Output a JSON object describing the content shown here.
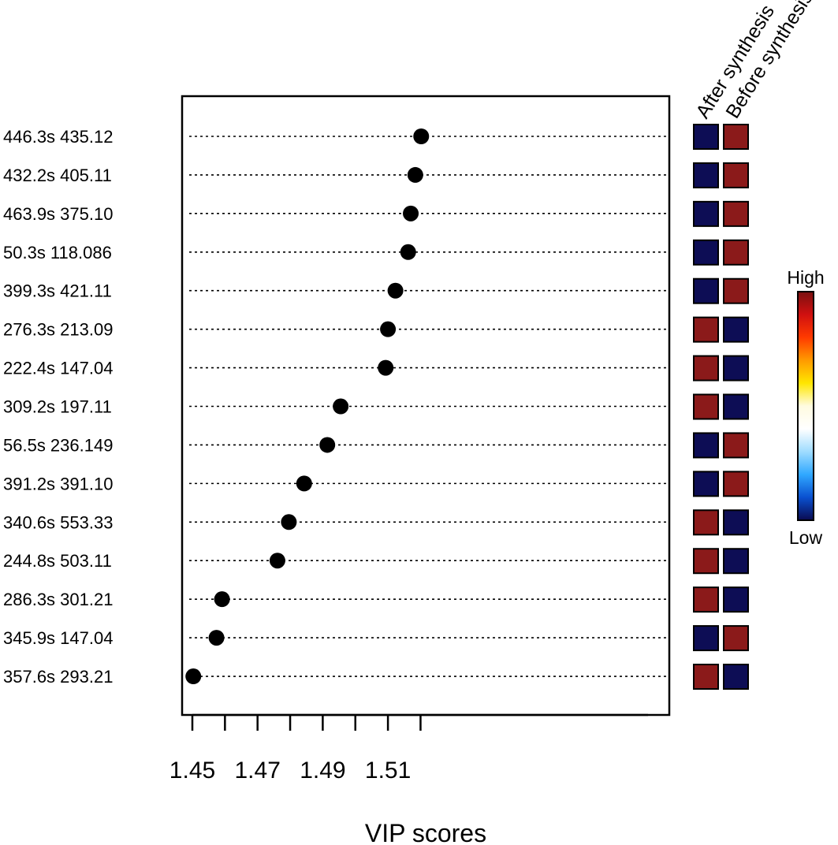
{
  "chart_data": {
    "type": "scatter",
    "title": "",
    "xlabel": "VIP scores",
    "ylabel": "",
    "xlim": [
      1.448,
      1.526
    ],
    "x_ticks": [
      1.45,
      1.46,
      1.47,
      1.48,
      1.49,
      1.5,
      1.51,
      1.52
    ],
    "x_tick_labels": [
      "1.45",
      "1.47",
      "1.49",
      "1.51"
    ],
    "features": [
      {
        "label": "446.3s  435.12",
        "vip": 1.5202
      },
      {
        "label": "432.2s  405.11",
        "vip": 1.5184
      },
      {
        "label": "463.9s  375.10",
        "vip": 1.517
      },
      {
        "label": "50.3s  118.086",
        "vip": 1.5162
      },
      {
        "label": "399.3s  421.11",
        "vip": 1.5123
      },
      {
        "label": "276.3s  213.09",
        "vip": 1.51
      },
      {
        "label": "222.4s  147.04",
        "vip": 1.5093
      },
      {
        "label": "309.2s  197.11",
        "vip": 1.4955
      },
      {
        "label": "56.5s  236.149",
        "vip": 1.4914
      },
      {
        "label": "391.2s  391.10",
        "vip": 1.4843
      },
      {
        "label": "340.6s  553.33",
        "vip": 1.4796
      },
      {
        "label": "244.8s  503.11",
        "vip": 1.4761
      },
      {
        "label": "286.3s  301.21",
        "vip": 1.4591
      },
      {
        "label": "345.9s  147.04",
        "vip": 1.4574
      },
      {
        "label": "357.6s  293.21",
        "vip": 1.4503
      }
    ],
    "groups": [
      "After synthesis",
      "Before synthesis"
    ],
    "heatmap": [
      [
        "low",
        "high"
      ],
      [
        "low",
        "high"
      ],
      [
        "low",
        "high"
      ],
      [
        "low",
        "high"
      ],
      [
        "low",
        "high"
      ],
      [
        "high",
        "low"
      ],
      [
        "high",
        "low"
      ],
      [
        "high",
        "low"
      ],
      [
        "low",
        "high"
      ],
      [
        "low",
        "high"
      ],
      [
        "high",
        "low"
      ],
      [
        "high",
        "low"
      ],
      [
        "high",
        "low"
      ],
      [
        "low",
        "high"
      ],
      [
        "high",
        "low"
      ]
    ],
    "colors": {
      "high": "#8b1a1a",
      "low": "#0d0d55",
      "point": "#000000"
    },
    "colorbar": {
      "high_label": "High",
      "low_label": "Low",
      "stops": [
        "#7a1010",
        "#d01010",
        "#ff3a00",
        "#ff9a00",
        "#ffe600",
        "#fffbe0",
        "#ffffff",
        "#9fdcff",
        "#30a8ff",
        "#0a50d0",
        "#0a0a50"
      ]
    }
  }
}
